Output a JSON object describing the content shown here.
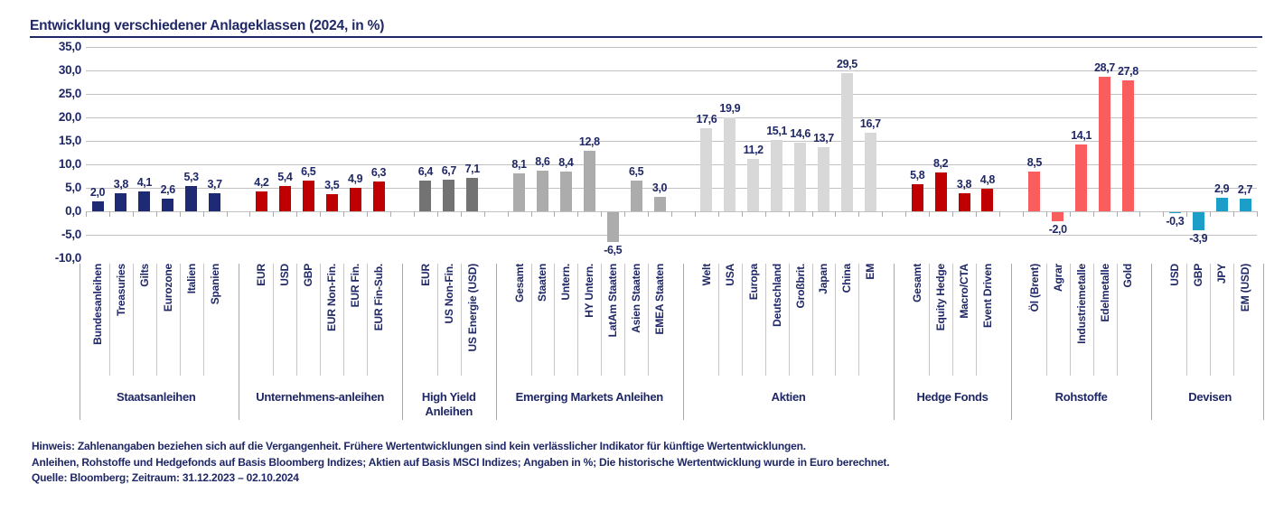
{
  "title": "Entwicklung verschiedener Anlageklassen (2024, in %)",
  "footer": {
    "line1": "Hinweis: Zahlenangaben beziehen sich auf die Vergangenheit. Frühere Wertentwicklungen sind kein verlässlicher Indikator für künftige Wertentwicklungen.",
    "line2": "Anleihen, Rohstoffe und Hedgefonds auf Basis Bloomberg Indizes; Aktien auf Basis MSCI Indizes; Angaben in %; Die historische Wertentwicklung wurde in Euro berechnet.",
    "line3": "Quelle: Bloomberg; Zeitraum: 31.12.2023 – 02.10.2024"
  },
  "chart_data": {
    "type": "bar",
    "title": "Entwicklung verschiedener Anlageklassen (2024, in %)",
    "ylim": [
      -10,
      35
    ],
    "grid": true,
    "y_axis": {
      "values": [
        35,
        30,
        25,
        20,
        15,
        10,
        5,
        0,
        -5,
        -10
      ],
      "labels": [
        "35,0",
        "30,0",
        "25,0",
        "20,0",
        "15,0",
        "10,0",
        "5,0",
        "0,0",
        "-5,0",
        "-10,0"
      ]
    },
    "groups": [
      {
        "name": "Staatsanleihen",
        "color": "#1F2A75",
        "categories": [
          "Bundesanleihen",
          "Treasuries",
          "Gilts",
          "Eurozone",
          "Italien",
          "Spanien"
        ],
        "values": [
          2.0,
          3.8,
          4.1,
          2.6,
          5.3,
          3.7
        ],
        "labels": [
          "2,0",
          "3,8",
          "4,1",
          "2,6",
          "5,3",
          "3,7"
        ]
      },
      {
        "name": "Unternehmens-anleihen",
        "color": "#C00000",
        "categories": [
          "EUR",
          "USD",
          "GBP",
          "EUR Non-Fin.",
          "EUR Fin.",
          "EUR Fin-Sub."
        ],
        "values": [
          4.2,
          5.4,
          6.5,
          3.5,
          4.9,
          6.3
        ],
        "labels": [
          "4,2",
          "5,4",
          "6,5",
          "3,5",
          "4,9",
          "6,3"
        ]
      },
      {
        "name": "High Yield Anleihen",
        "color": "#737373",
        "categories": [
          "EUR",
          "US Non-Fin.",
          "US Energie (USD)"
        ],
        "values": [
          6.4,
          6.7,
          7.1
        ],
        "labels": [
          "6,4",
          "6,7",
          "7,1"
        ]
      },
      {
        "name": "Emerging Markets Anleihen",
        "color": "#ACACAC",
        "categories": [
          "Gesamt",
          "Staaten",
          "Untern.",
          "HY Untern.",
          "LatAm Staaten",
          "Asien Staaten",
          "EMEA Staaten"
        ],
        "values": [
          8.1,
          8.6,
          8.4,
          12.8,
          -6.5,
          6.5,
          3.0
        ],
        "labels": [
          "8,1",
          "8,6",
          "8,4",
          "12,8",
          "-6,5",
          "6,5",
          "3,0"
        ]
      },
      {
        "name": "Aktien",
        "color": "#D8D8D8",
        "categories": [
          "Welt",
          "USA",
          "Europa",
          "Deutschland",
          "Großbrit.",
          "Japan",
          "China",
          "EM"
        ],
        "values": [
          17.6,
          19.9,
          11.2,
          15.1,
          14.6,
          13.7,
          29.5,
          16.7
        ],
        "labels": [
          "17,6",
          "19,9",
          "11,2",
          "15,1",
          "14,6",
          "13,7",
          "29,5",
          "16,7"
        ]
      },
      {
        "name": "Hedge Fonds",
        "color": "#C00000",
        "categories": [
          "Gesamt",
          "Equity Hedge",
          "Macro/CTA",
          "Event Driven"
        ],
        "values": [
          5.8,
          8.2,
          3.8,
          4.8
        ],
        "labels": [
          "5,8",
          "8,2",
          "3,8",
          "4,8"
        ]
      },
      {
        "name": "Rohstoffe",
        "color": "#FA5D5D",
        "categories": [
          "Öl (Brent)",
          "Agrar",
          "Industriemetalle",
          "Edelmetalle",
          "Gold"
        ],
        "values": [
          8.5,
          -2.0,
          14.1,
          28.7,
          27.8
        ],
        "labels": [
          "8,5",
          "-2,0",
          "14,1",
          "28,7",
          "27,8"
        ]
      },
      {
        "name": "Devisen",
        "color": "#1B9FC8",
        "categories": [
          "USD",
          "GBP",
          "JPY",
          "EM (USD)"
        ],
        "values": [
          -0.3,
          -3.9,
          2.9,
          2.7
        ],
        "labels": [
          "-0,3",
          "-3,9",
          "2,9",
          "2,7"
        ]
      }
    ]
  }
}
